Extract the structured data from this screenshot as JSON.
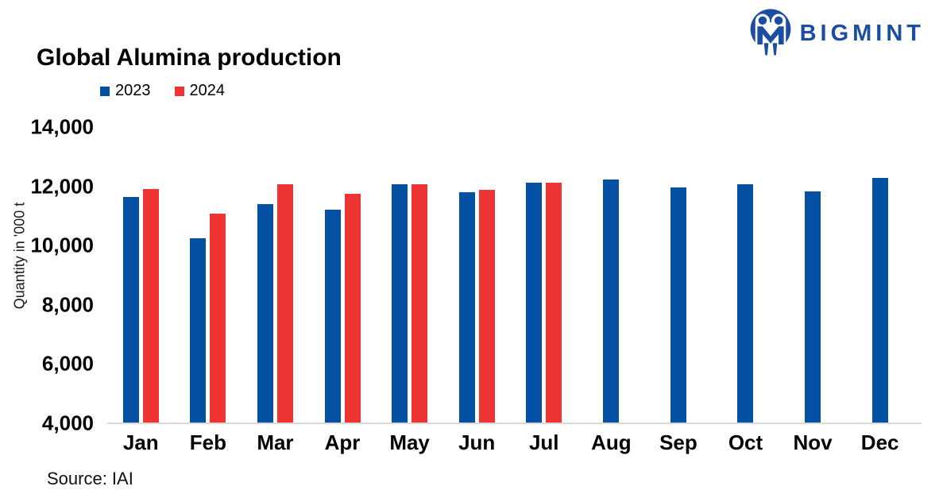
{
  "logo": {
    "text": "BIGMINT",
    "color": "#1B4DA3"
  },
  "chart_data": {
    "type": "bar",
    "title": "Global Alumina production",
    "ylabel": "Quantity in '000 t",
    "xlabel": "",
    "source": "Source: IAI",
    "grid": false,
    "legend_position": "top-left",
    "ylim": [
      4000,
      14000
    ],
    "ytick_values": [
      14000,
      12000,
      10000,
      8000,
      6000,
      4000
    ],
    "ytick_labels": [
      "14,000",
      "12,000",
      "10,000",
      "8,000",
      "6,000",
      "4,000"
    ],
    "categories": [
      "Jan",
      "Feb",
      "Mar",
      "Apr",
      "May",
      "Jun",
      "Jul",
      "Aug",
      "Sep",
      "Oct",
      "Nov",
      "Dec"
    ],
    "series": [
      {
        "name": "2023",
        "color": "#0450A2",
        "values": [
          11650,
          10250,
          11400,
          11220,
          12080,
          11790,
          12130,
          12230,
          11950,
          12060,
          11840,
          12280
        ]
      },
      {
        "name": "2024",
        "color": "#EE3534",
        "values": [
          11900,
          11080,
          12080,
          11740,
          12060,
          11890,
          12130,
          null,
          null,
          null,
          null,
          null
        ]
      }
    ]
  }
}
